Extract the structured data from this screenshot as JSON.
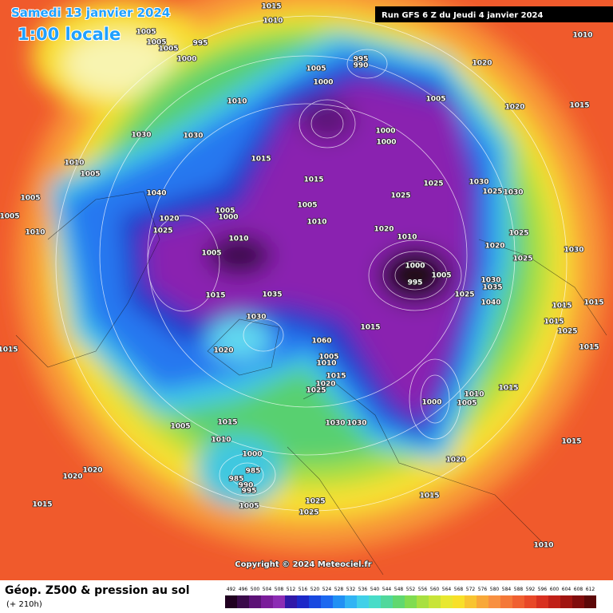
{
  "header": {
    "title": "Samedi 13 janvier 2024",
    "time": "1:00 locale",
    "run": "Run GFS 6 Z du Jeudi 4 janvier 2024"
  },
  "map": {
    "copyright": "Copyright © 2024 Meteociel.fr",
    "pressure_labels": [
      1015,
      1010,
      1005,
      1005,
      995,
      1005,
      1000,
      1010,
      995,
      990,
      1005,
      1000,
      1020,
      1010,
      1015,
      1005,
      1020,
      1030,
      1030,
      1000,
      1000,
      1010,
      1005,
      1015,
      1015,
      1025,
      1030,
      1025,
      1030,
      1005,
      1040,
      1025,
      1005,
      1005,
      1020,
      1005,
      1000,
      1010,
      1010,
      1025,
      1020,
      1010,
      1010,
      1025,
      1020,
      1005,
      1025,
      1030,
      1000,
      1005,
      995,
      1030,
      1035,
      1015,
      1035,
      1025,
      1040,
      1015,
      1015,
      1015,
      1030,
      1015,
      1025,
      1060,
      1010,
      1005,
      1020,
      1015,
      1015,
      1015,
      1020,
      1025,
      1000,
      1010,
      1005,
      1015,
      1030,
      1030,
      1005,
      1015,
      1010,
      1000,
      1015,
      1020,
      985,
      985,
      990,
      995,
      1020,
      1020,
      1015,
      1005,
      1025,
      1025,
      1015,
      1010
    ]
  },
  "legend": {
    "title": "Géop. Z500 & pression au sol",
    "subtitle": "(+ 210h)",
    "scale": [
      492,
      496,
      500,
      504,
      508,
      512,
      516,
      520,
      524,
      528,
      532,
      536,
      540,
      544,
      548,
      552,
      556,
      560,
      564,
      568,
      572,
      576,
      580,
      584,
      588,
      592,
      596,
      600,
      604,
      608,
      612
    ],
    "colors": [
      "#200020",
      "#3a0a4a",
      "#5c1276",
      "#7a1c9a",
      "#8c2cb4",
      "#3018a8",
      "#1c28c8",
      "#1848e0",
      "#1c68f0",
      "#2090f4",
      "#30b4f4",
      "#40d0e8",
      "#48dcc8",
      "#50d89c",
      "#60d870",
      "#80dc50",
      "#a8e040",
      "#c8e438",
      "#e8e830",
      "#f8e028",
      "#f8c430",
      "#f8a838",
      "#f89040",
      "#f47838",
      "#f06030",
      "#e84828",
      "#d83020",
      "#c02018",
      "#a01410",
      "#800c0c",
      "#5c0808"
    ]
  }
}
